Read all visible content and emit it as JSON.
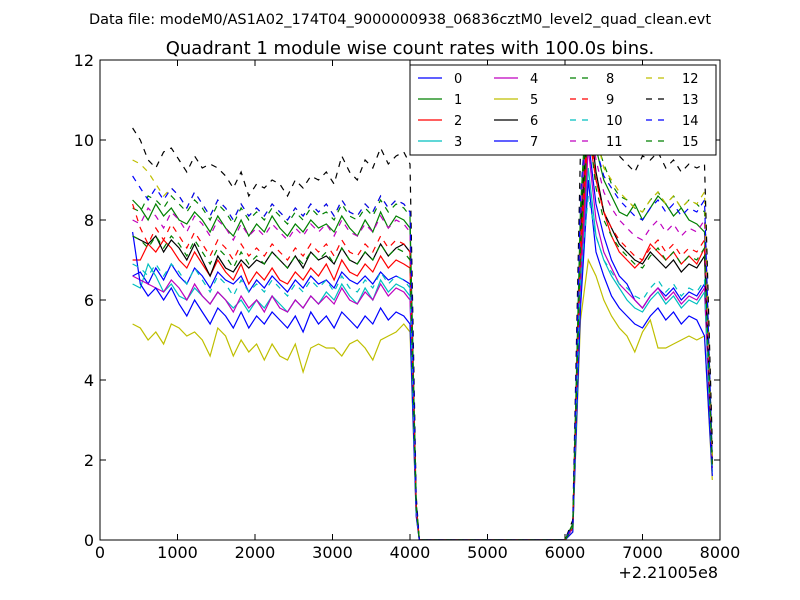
{
  "chart_data": {
    "type": "line",
    "suptitle": "Data file: modeM0/AS1A02_174T04_9000000938_06836cztM0_level2_quad_clean.evt",
    "title": "Quadrant 1 module wise count rates with 100.0s bins.",
    "xlabel": "",
    "ylabel": "",
    "x_offset_label": "+2.21005e8",
    "xlim": [
      0,
      8000
    ],
    "ylim": [
      0,
      12
    ],
    "x_ticks": [
      "0",
      "1000",
      "2000",
      "3000",
      "4000",
      "5000",
      "6000",
      "7000",
      "8000"
    ],
    "y_ticks": [
      "0",
      "2",
      "4",
      "6",
      "8",
      "10",
      "12"
    ],
    "grid": false,
    "legend_position": "top-right",
    "x": [
      420,
      520,
      620,
      720,
      820,
      920,
      1020,
      1120,
      1220,
      1320,
      1420,
      1520,
      1620,
      1720,
      1820,
      1920,
      2020,
      2120,
      2220,
      2320,
      2420,
      2520,
      2620,
      2720,
      2820,
      2920,
      3020,
      3120,
      3220,
      3320,
      3420,
      3520,
      3620,
      3720,
      3820,
      3920,
      4000,
      4080,
      4120,
      4200,
      4400,
      4600,
      4800,
      5000,
      5200,
      5400,
      5600,
      5800,
      6000,
      6100,
      6200,
      6300,
      6400,
      6500,
      6600,
      6700,
      6800,
      6900,
      7000,
      7100,
      7200,
      7300,
      7400,
      7500,
      7600,
      7700,
      7800,
      7900
    ],
    "series": [
      {
        "name": "0",
        "color": "#0000ff",
        "style": "solid",
        "values": [
          6.6,
          6.7,
          6.4,
          6.8,
          6.5,
          6.9,
          6.6,
          6.4,
          6.8,
          6.6,
          6.3,
          6.7,
          6.5,
          6.4,
          6.6,
          6.2,
          6.5,
          6.3,
          6.6,
          6.4,
          6.2,
          6.5,
          6.3,
          6.6,
          6.4,
          6.5,
          6.3,
          6.7,
          6.5,
          6.4,
          6.6,
          6.4,
          6.7,
          6.5,
          6.6,
          6.5,
          6.4,
          0.8,
          0,
          0,
          0,
          0,
          0,
          0,
          0,
          0,
          0,
          0,
          0,
          0.3,
          6.5,
          10.0,
          8.4,
          7.6,
          7.0,
          6.6,
          6.4,
          6.0,
          5.8,
          6.1,
          6.3,
          6.1,
          6.3,
          6.0,
          6.2,
          6.1,
          6.4,
          1.8
        ]
      },
      {
        "name": "1",
        "color": "#008000",
        "style": "solid",
        "values": [
          8.5,
          8.3,
          8.0,
          8.4,
          8.1,
          8.3,
          8.0,
          7.9,
          8.2,
          8.0,
          7.7,
          8.1,
          7.8,
          7.6,
          8.0,
          7.6,
          7.9,
          7.7,
          8.1,
          7.8,
          7.6,
          7.9,
          7.7,
          8.0,
          7.8,
          7.9,
          7.7,
          8.1,
          7.8,
          7.6,
          8.0,
          7.7,
          8.2,
          7.8,
          8.1,
          8.0,
          7.8,
          0.9,
          0,
          0,
          0,
          0,
          0,
          0,
          0,
          0,
          0,
          0,
          0,
          0.4,
          8.0,
          11.2,
          9.8,
          9.0,
          8.6,
          8.2,
          8.1,
          8.4,
          8.0,
          8.3,
          8.6,
          8.4,
          8.1,
          8.3,
          8.0,
          7.9,
          7.7,
          2.0
        ]
      },
      {
        "name": "2",
        "color": "#ff0000",
        "style": "solid",
        "values": [
          7.0,
          7.0,
          7.4,
          7.2,
          7.5,
          7.3,
          7.0,
          6.8,
          7.2,
          6.9,
          6.6,
          7.0,
          6.7,
          6.5,
          6.9,
          6.4,
          6.7,
          6.5,
          6.8,
          6.5,
          6.4,
          6.7,
          6.5,
          6.8,
          6.6,
          6.9,
          6.5,
          7.0,
          6.7,
          6.6,
          6.9,
          6.7,
          7.1,
          6.8,
          7.0,
          6.9,
          6.8,
          0.8,
          0,
          0,
          0,
          0,
          0,
          0,
          0,
          0,
          0,
          0,
          0,
          0.3,
          7.0,
          10.2,
          9.0,
          8.2,
          7.6,
          7.2,
          7.0,
          6.8,
          7.0,
          7.4,
          7.2,
          7.0,
          7.2,
          6.9,
          7.1,
          6.9,
          7.3,
          1.9
        ]
      },
      {
        "name": "3",
        "color": "#00bfbf",
        "style": "solid",
        "values": [
          6.4,
          6.3,
          6.9,
          6.6,
          6.2,
          6.4,
          6.1,
          6.0,
          6.3,
          6.1,
          5.9,
          6.2,
          6.0,
          5.8,
          6.0,
          5.7,
          6.0,
          5.8,
          6.1,
          5.9,
          5.7,
          6.0,
          5.8,
          6.1,
          5.9,
          6.2,
          6.0,
          6.4,
          6.1,
          5.9,
          6.3,
          6.0,
          6.5,
          6.2,
          6.4,
          6.3,
          6.1,
          0.7,
          0,
          0,
          0,
          0,
          0,
          0,
          0,
          0,
          0,
          0,
          0,
          0.3,
          6.2,
          9.3,
          7.6,
          7.0,
          6.6,
          6.3,
          6.0,
          5.8,
          5.7,
          6.0,
          6.2,
          5.9,
          6.1,
          5.8,
          6.0,
          5.9,
          6.2,
          1.7
        ]
      },
      {
        "name": "4",
        "color": "#bf00bf",
        "style": "solid",
        "values": [
          6.6,
          6.5,
          6.4,
          6.3,
          6.2,
          6.5,
          6.3,
          6.0,
          6.4,
          6.1,
          5.9,
          6.2,
          6.0,
          5.7,
          6.1,
          5.8,
          6.0,
          5.7,
          6.1,
          5.8,
          5.7,
          6.0,
          5.8,
          6.1,
          5.9,
          6.1,
          5.9,
          6.3,
          6.0,
          5.9,
          6.2,
          6.0,
          6.4,
          6.1,
          6.3,
          6.2,
          6.0,
          0.7,
          0,
          0,
          0,
          0,
          0,
          0,
          0,
          0,
          0,
          0,
          0,
          0.3,
          6.4,
          9.8,
          8.0,
          7.2,
          6.8,
          6.4,
          6.2,
          6.0,
          5.8,
          6.1,
          6.3,
          6.0,
          6.2,
          5.9,
          6.1,
          6.0,
          6.3,
          1.8
        ]
      },
      {
        "name": "5",
        "color": "#bfbf00",
        "style": "solid",
        "values": [
          5.4,
          5.3,
          5.0,
          5.2,
          4.9,
          5.4,
          5.3,
          5.1,
          5.2,
          5.0,
          4.6,
          5.3,
          5.1,
          4.6,
          5.0,
          4.7,
          4.9,
          4.5,
          4.9,
          4.6,
          4.5,
          4.9,
          4.2,
          4.8,
          4.9,
          4.8,
          4.8,
          4.6,
          4.9,
          5.0,
          4.8,
          4.5,
          5.0,
          5.1,
          5.2,
          5.4,
          5.2,
          0.6,
          0,
          0,
          0,
          0,
          0,
          0,
          0,
          0,
          0,
          0,
          0,
          0.2,
          5.5,
          7.0,
          6.6,
          6.0,
          5.6,
          5.3,
          5.1,
          4.7,
          5.2,
          5.5,
          4.8,
          4.8,
          4.9,
          5.0,
          5.1,
          5.0,
          5.1,
          1.5
        ]
      },
      {
        "name": "6",
        "color": "#000000",
        "style": "solid",
        "values": [
          7.6,
          7.5,
          7.4,
          7.6,
          7.2,
          7.5,
          7.3,
          7.0,
          7.4,
          7.0,
          6.6,
          7.1,
          6.8,
          6.7,
          7.0,
          6.8,
          7.0,
          6.9,
          7.2,
          7.0,
          6.8,
          7.1,
          6.8,
          7.2,
          7.0,
          7.1,
          6.9,
          7.3,
          7.0,
          6.9,
          7.2,
          7.0,
          7.4,
          7.1,
          7.3,
          7.4,
          7.2,
          0.9,
          0,
          0,
          0,
          0,
          0,
          0,
          0,
          0,
          0,
          0,
          0,
          0.4,
          7.6,
          10.8,
          9.2,
          8.2,
          7.8,
          7.4,
          7.2,
          7.0,
          6.9,
          7.2,
          7.0,
          6.8,
          7.0,
          6.7,
          6.9,
          6.8,
          7.1,
          1.9
        ]
      },
      {
        "name": "7",
        "color": "#0000ff",
        "style": "solid",
        "values": [
          7.7,
          6.4,
          6.1,
          6.3,
          6.0,
          6.3,
          5.9,
          5.6,
          6.0,
          5.7,
          5.4,
          5.8,
          5.6,
          5.3,
          5.7,
          5.3,
          5.6,
          5.4,
          5.7,
          5.5,
          5.3,
          5.6,
          5.2,
          5.7,
          5.4,
          5.6,
          5.3,
          5.7,
          5.5,
          5.3,
          5.6,
          5.4,
          5.8,
          5.5,
          5.7,
          5.6,
          5.4,
          0.6,
          0,
          0,
          0,
          0,
          0,
          0,
          0,
          0,
          0,
          0,
          0,
          0.2,
          5.8,
          9.0,
          7.2,
          6.6,
          6.1,
          5.8,
          5.6,
          5.4,
          5.3,
          5.6,
          5.8,
          5.5,
          5.7,
          5.4,
          5.6,
          5.5,
          5.1,
          1.6
        ]
      },
      {
        "name": "8",
        "color": "#008000",
        "style": "dashed",
        "values": [
          8.3,
          8.2,
          8.6,
          8.5,
          8.3,
          8.6,
          8.4,
          8.2,
          8.5,
          8.3,
          8.0,
          8.4,
          8.2,
          7.9,
          8.3,
          8.0,
          8.2,
          8.0,
          8.3,
          8.1,
          7.9,
          8.2,
          8.0,
          8.3,
          8.1,
          8.2,
          8.0,
          8.4,
          8.1,
          8.0,
          8.3,
          8.1,
          8.5,
          8.2,
          8.4,
          8.3,
          8.1,
          0.9,
          0,
          0,
          0,
          0,
          0,
          0,
          0,
          0,
          0,
          0,
          0,
          0.4,
          8.3,
          11.8,
          10.0,
          9.4,
          8.9,
          8.6,
          8.5,
          8.3,
          8.2,
          8.5,
          8.7,
          8.4,
          8.6,
          8.3,
          8.5,
          8.4,
          8.2,
          2.1
        ]
      },
      {
        "name": "9",
        "color": "#ff0000",
        "style": "dashed",
        "values": [
          8.4,
          7.8,
          7.4,
          7.8,
          7.5,
          7.9,
          7.6,
          7.3,
          7.7,
          7.4,
          7.1,
          7.5,
          7.3,
          7.0,
          7.4,
          7.1,
          7.3,
          7.1,
          7.4,
          7.2,
          7.0,
          7.3,
          7.1,
          7.4,
          7.2,
          7.4,
          7.1,
          7.5,
          7.2,
          7.1,
          7.4,
          7.2,
          7.6,
          7.3,
          7.5,
          7.4,
          7.2,
          0.8,
          0,
          0,
          0,
          0,
          0,
          0,
          0,
          0,
          0,
          0,
          0,
          0.3,
          7.4,
          10.6,
          9.0,
          8.2,
          7.8,
          7.5,
          7.3,
          7.1,
          7.0,
          7.3,
          7.5,
          7.2,
          7.4,
          7.1,
          7.3,
          7.2,
          7.5,
          1.9
        ]
      },
      {
        "name": "10",
        "color": "#00bfbf",
        "style": "dashed",
        "values": [
          6.9,
          6.8,
          6.6,
          6.9,
          6.6,
          6.9,
          6.7,
          6.4,
          6.8,
          6.5,
          6.2,
          6.6,
          6.4,
          6.1,
          6.5,
          6.2,
          6.4,
          6.2,
          6.5,
          6.3,
          6.1,
          6.4,
          6.2,
          6.5,
          6.3,
          6.5,
          6.2,
          6.6,
          6.3,
          6.2,
          6.5,
          6.3,
          6.7,
          6.4,
          6.6,
          6.5,
          6.3,
          0.7,
          0,
          0,
          0,
          0,
          0,
          0,
          0,
          0,
          0,
          0,
          0,
          0.3,
          6.6,
          8.6,
          7.6,
          7.0,
          6.7,
          6.4,
          6.3,
          6.1,
          6.0,
          6.3,
          6.5,
          6.2,
          6.4,
          6.1,
          6.3,
          6.2,
          6.5,
          1.7
        ]
      },
      {
        "name": "11",
        "color": "#bf00bf",
        "style": "dashed",
        "values": [
          8.0,
          7.9,
          8.3,
          8.1,
          7.8,
          8.2,
          8.0,
          7.7,
          8.1,
          7.9,
          7.6,
          8.0,
          7.8,
          7.5,
          7.9,
          7.6,
          7.8,
          7.6,
          7.9,
          7.7,
          7.5,
          7.8,
          7.6,
          7.9,
          7.7,
          7.9,
          7.6,
          8.0,
          7.7,
          7.6,
          7.9,
          7.7,
          8.1,
          7.8,
          8.0,
          7.9,
          7.7,
          0.8,
          0,
          0,
          0,
          0,
          0,
          0,
          0,
          0,
          0,
          0,
          0,
          0.3,
          8.0,
          11.0,
          9.5,
          8.7,
          8.3,
          8.0,
          7.8,
          7.6,
          7.5,
          7.8,
          8.0,
          7.7,
          7.9,
          7.6,
          7.8,
          7.7,
          8.0,
          2.0
        ]
      },
      {
        "name": "12",
        "color": "#bfbf00",
        "style": "dashed",
        "values": [
          9.5,
          9.4,
          9.2,
          8.9,
          8.6,
          8.8,
          8.6,
          8.3,
          8.7,
          8.4,
          8.1,
          8.5,
          8.3,
          8.0,
          8.4,
          8.1,
          8.3,
          8.1,
          8.4,
          8.2,
          8.0,
          8.3,
          8.1,
          8.4,
          8.2,
          8.4,
          8.1,
          8.5,
          8.2,
          8.1,
          8.4,
          8.2,
          8.6,
          8.3,
          8.5,
          8.4,
          8.2,
          0.9,
          0,
          0,
          0,
          0,
          0,
          0,
          0,
          0,
          0,
          0,
          0,
          0.4,
          8.5,
          11.6,
          10.1,
          9.3,
          9.0,
          8.7,
          8.5,
          8.3,
          8.2,
          8.5,
          8.7,
          8.4,
          8.6,
          8.3,
          8.5,
          8.4,
          8.7,
          2.1
        ]
      },
      {
        "name": "13",
        "color": "#000000",
        "style": "dashed",
        "values": [
          10.3,
          10.0,
          9.5,
          9.3,
          9.7,
          9.8,
          9.5,
          9.2,
          9.6,
          9.3,
          9.4,
          9.3,
          9.1,
          8.8,
          9.2,
          8.6,
          8.9,
          8.8,
          9.0,
          8.9,
          8.6,
          9.0,
          8.8,
          9.1,
          9.0,
          9.2,
          8.9,
          9.6,
          9.2,
          9.0,
          9.5,
          9.3,
          9.8,
          9.4,
          9.6,
          9.7,
          9.4,
          1.1,
          0,
          0,
          0,
          0,
          0,
          0,
          0,
          0,
          0,
          0,
          0,
          0.5,
          9.8,
          11.8,
          10.8,
          10.2,
          9.9,
          9.6,
          9.4,
          9.2,
          9.6,
          9.5,
          9.7,
          9.3,
          9.5,
          9.2,
          9.4,
          9.3,
          9.4,
          2.4
        ]
      },
      {
        "name": "14",
        "color": "#0000ff",
        "style": "dashed",
        "values": [
          9.1,
          8.8,
          8.5,
          8.8,
          8.5,
          8.8,
          8.6,
          8.3,
          8.7,
          8.4,
          8.1,
          8.5,
          8.3,
          8.0,
          8.4,
          8.1,
          8.3,
          8.1,
          8.4,
          8.2,
          8.0,
          8.3,
          8.1,
          8.4,
          8.2,
          8.4,
          8.1,
          8.5,
          8.2,
          8.1,
          8.4,
          8.2,
          8.6,
          8.3,
          8.5,
          8.4,
          8.2,
          0.9,
          0,
          0,
          0,
          0,
          0,
          0,
          0,
          0,
          0,
          0,
          0,
          0.4,
          8.6,
          11.2,
          9.8,
          9.1,
          8.8,
          8.5,
          8.3,
          8.1,
          8.0,
          8.3,
          8.5,
          8.2,
          8.4,
          8.1,
          8.3,
          8.2,
          8.5,
          2.0
        ]
      },
      {
        "name": "15",
        "color": "#008000",
        "style": "dashed",
        "values": [
          7.6,
          7.5,
          7.3,
          7.6,
          7.3,
          7.6,
          7.4,
          7.1,
          7.5,
          7.2,
          6.9,
          7.3,
          7.1,
          6.8,
          7.2,
          6.9,
          7.1,
          6.9,
          7.2,
          7.0,
          6.8,
          7.1,
          6.9,
          7.2,
          7.0,
          7.2,
          6.9,
          7.3,
          7.0,
          6.9,
          7.2,
          7.0,
          7.4,
          7.1,
          7.3,
          7.2,
          7.0,
          0.8,
          0,
          0,
          0,
          0,
          0,
          0,
          0,
          0,
          0,
          0,
          0,
          0.3,
          7.3,
          10.4,
          8.8,
          8.0,
          7.6,
          7.3,
          7.1,
          6.9,
          6.8,
          7.1,
          7.3,
          7.0,
          7.2,
          6.9,
          7.1,
          7.0,
          7.3,
          1.8
        ]
      }
    ]
  }
}
